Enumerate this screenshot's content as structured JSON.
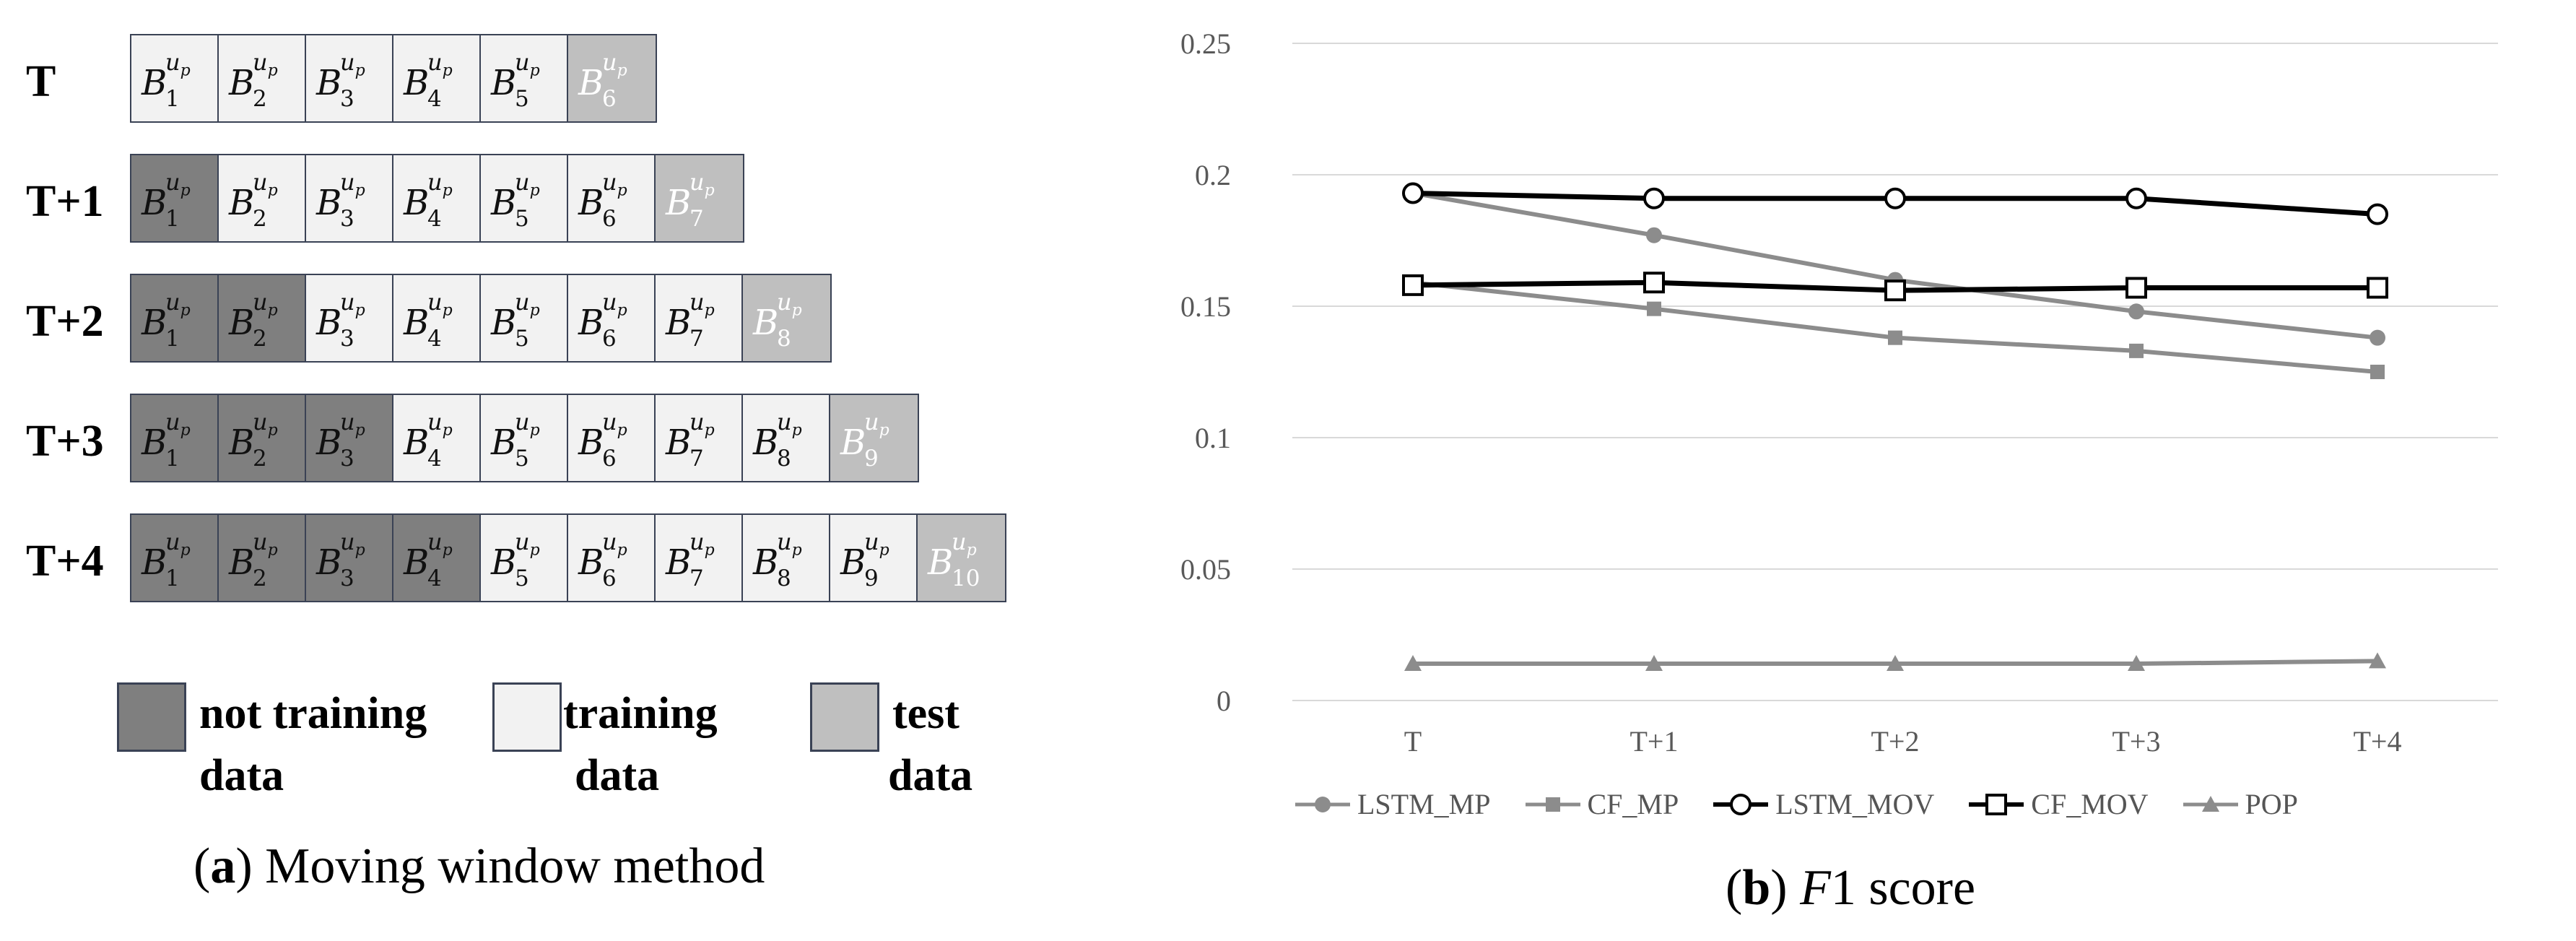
{
  "panel_a": {
    "caption_label": "a",
    "caption_text": "Moving window method",
    "cell_letter": "B",
    "cell_superscript": "u",
    "cell_superscript_sub": "p",
    "rows": [
      {
        "label": "T",
        "cells": [
          {
            "i": "1",
            "type": "train"
          },
          {
            "i": "2",
            "type": "train"
          },
          {
            "i": "3",
            "type": "train"
          },
          {
            "i": "4",
            "type": "train"
          },
          {
            "i": "5",
            "type": "train"
          },
          {
            "i": "6",
            "type": "test"
          }
        ]
      },
      {
        "label": "T+1",
        "cells": [
          {
            "i": "1",
            "type": "nontrain"
          },
          {
            "i": "2",
            "type": "train"
          },
          {
            "i": "3",
            "type": "train"
          },
          {
            "i": "4",
            "type": "train"
          },
          {
            "i": "5",
            "type": "train"
          },
          {
            "i": "6",
            "type": "train"
          },
          {
            "i": "7",
            "type": "test"
          }
        ]
      },
      {
        "label": "T+2",
        "cells": [
          {
            "i": "1",
            "type": "nontrain"
          },
          {
            "i": "2",
            "type": "nontrain"
          },
          {
            "i": "3",
            "type": "train"
          },
          {
            "i": "4",
            "type": "train"
          },
          {
            "i": "5",
            "type": "train"
          },
          {
            "i": "6",
            "type": "train"
          },
          {
            "i": "7",
            "type": "train"
          },
          {
            "i": "8",
            "type": "test"
          }
        ]
      },
      {
        "label": "T+3",
        "cells": [
          {
            "i": "1",
            "type": "nontrain"
          },
          {
            "i": "2",
            "type": "nontrain"
          },
          {
            "i": "3",
            "type": "nontrain"
          },
          {
            "i": "4",
            "type": "train"
          },
          {
            "i": "5",
            "type": "train"
          },
          {
            "i": "6",
            "type": "train"
          },
          {
            "i": "7",
            "type": "train"
          },
          {
            "i": "8",
            "type": "train"
          },
          {
            "i": "9",
            "type": "test"
          }
        ]
      },
      {
        "label": "T+4",
        "cells": [
          {
            "i": "1",
            "type": "nontrain"
          },
          {
            "i": "2",
            "type": "nontrain"
          },
          {
            "i": "3",
            "type": "nontrain"
          },
          {
            "i": "4",
            "type": "nontrain"
          },
          {
            "i": "5",
            "type": "train"
          },
          {
            "i": "6",
            "type": "train"
          },
          {
            "i": "7",
            "type": "train"
          },
          {
            "i": "8",
            "type": "train"
          },
          {
            "i": "9",
            "type": "train"
          },
          {
            "i": "10",
            "type": "test"
          }
        ]
      }
    ],
    "legend": [
      {
        "type": "nontrain",
        "line1": "not training",
        "line2": "data"
      },
      {
        "type": "train",
        "line1": "training",
        "line2": "data"
      },
      {
        "type": "test",
        "line1": "test",
        "line2": "data"
      }
    ],
    "colors": {
      "nontrain": "#7f7f7f",
      "train": "#f2f2f2",
      "test": "#bfbfbf",
      "border": "#3a4255"
    }
  },
  "panel_b": {
    "caption_label": "b",
    "caption_italic": "F",
    "caption_rest": "1 score"
  },
  "chart_data": {
    "type": "line",
    "title": "",
    "xlabel": "",
    "ylabel": "",
    "categories": [
      "T",
      "T+1",
      "T+2",
      "T+3",
      "T+4"
    ],
    "ylim": [
      0,
      0.25
    ],
    "yticks": [
      0,
      0.05,
      0.1,
      0.15,
      0.2,
      0.25
    ],
    "ytick_labels": [
      "0",
      "0.05",
      "0.1",
      "0.15",
      "0.2",
      "0.25"
    ],
    "grid": "horizontal",
    "legend_position": "bottom",
    "series": [
      {
        "name": "LSTM_MP",
        "values": [
          0.193,
          0.177,
          0.16,
          0.148,
          0.138
        ],
        "color": "#8c8c8c",
        "marker": "circle-filled"
      },
      {
        "name": "CF_MP",
        "values": [
          0.159,
          0.149,
          0.138,
          0.133,
          0.125
        ],
        "color": "#8c8c8c",
        "marker": "square-filled"
      },
      {
        "name": "LSTM_MOV",
        "values": [
          0.193,
          0.191,
          0.191,
          0.191,
          0.185
        ],
        "color": "#000000",
        "marker": "circle-open"
      },
      {
        "name": "CF_MOV",
        "values": [
          0.158,
          0.159,
          0.156,
          0.157,
          0.157
        ],
        "color": "#000000",
        "marker": "square-open"
      },
      {
        "name": "POP",
        "values": [
          0.014,
          0.014,
          0.014,
          0.014,
          0.015
        ],
        "color": "#8c8c8c",
        "marker": "triangle-filled"
      }
    ]
  }
}
